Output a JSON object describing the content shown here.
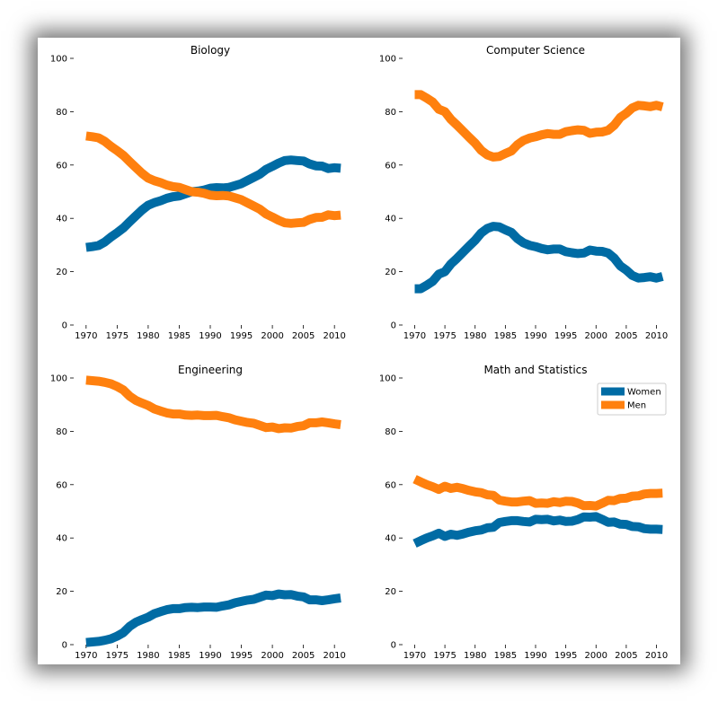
{
  "chart_data": [
    {
      "type": "line",
      "title": "Biology",
      "xlim": [
        1968,
        2012
      ],
      "ylim": [
        0,
        100
      ],
      "xticks": [
        1970,
        1975,
        1980,
        1985,
        1990,
        1995,
        2000,
        2005,
        2010
      ],
      "yticks": [
        0,
        20,
        40,
        60,
        80,
        100
      ],
      "x": [
        1970,
        1971,
        1972,
        1973,
        1974,
        1975,
        1976,
        1977,
        1978,
        1979,
        1980,
        1981,
        1982,
        1983,
        1984,
        1985,
        1986,
        1987,
        1988,
        1989,
        1990,
        1991,
        1992,
        1993,
        1994,
        1995,
        1996,
        1997,
        1998,
        1999,
        2000,
        2001,
        2002,
        2003,
        2004,
        2005,
        2006,
        2007,
        2008,
        2009,
        2010,
        2011
      ],
      "series": [
        {
          "name": "Women",
          "color": "#006BA4",
          "values": [
            29.1,
            29.4,
            29.8,
            31.1,
            33.0,
            34.6,
            36.4,
            38.7,
            40.9,
            43.1,
            44.9,
            45.9,
            46.6,
            47.5,
            48.1,
            48.4,
            49.2,
            50.0,
            50.2,
            50.6,
            51.3,
            51.5,
            51.4,
            51.6,
            52.3,
            53.0,
            54.2,
            55.4,
            56.6,
            58.4,
            59.5,
            60.7,
            61.7,
            61.9,
            61.7,
            61.5,
            60.4,
            59.7,
            59.6,
            58.7,
            59.0,
            58.8
          ]
        },
        {
          "name": "Men",
          "color": "#FF800E",
          "values": [
            70.9,
            70.6,
            70.2,
            68.9,
            67.0,
            65.4,
            63.6,
            61.3,
            59.1,
            56.9,
            55.1,
            54.1,
            53.4,
            52.5,
            51.9,
            51.6,
            50.8,
            50.0,
            49.8,
            49.4,
            48.7,
            48.5,
            48.6,
            48.4,
            47.7,
            47.0,
            45.8,
            44.6,
            43.4,
            41.6,
            40.5,
            39.3,
            38.3,
            38.1,
            38.3,
            38.5,
            39.6,
            40.3,
            40.4,
            41.3,
            41.0,
            41.2
          ]
        }
      ]
    },
    {
      "type": "line",
      "title": "Computer Science",
      "xlim": [
        1968,
        2012
      ],
      "ylim": [
        0,
        100
      ],
      "xticks": [
        1970,
        1975,
        1980,
        1985,
        1990,
        1995,
        2000,
        2005,
        2010
      ],
      "yticks": [
        0,
        20,
        40,
        60,
        80,
        100
      ],
      "x": [
        1970,
        1971,
        1972,
        1973,
        1974,
        1975,
        1976,
        1977,
        1978,
        1979,
        1980,
        1981,
        1982,
        1983,
        1984,
        1985,
        1986,
        1987,
        1988,
        1989,
        1990,
        1991,
        1992,
        1993,
        1994,
        1995,
        1996,
        1997,
        1998,
        1999,
        2000,
        2001,
        2002,
        2003,
        2004,
        2005,
        2006,
        2007,
        2008,
        2009,
        2010,
        2011
      ],
      "series": [
        {
          "name": "Women",
          "color": "#006BA4",
          "values": [
            13.6,
            13.6,
            14.9,
            16.4,
            19.1,
            20.0,
            22.9,
            25.0,
            27.3,
            29.6,
            31.8,
            34.5,
            36.2,
            37.0,
            36.8,
            35.7,
            34.7,
            32.4,
            30.8,
            29.9,
            29.4,
            28.7,
            28.2,
            28.5,
            28.5,
            27.5,
            27.1,
            26.8,
            27.0,
            28.1,
            27.7,
            27.6,
            27.0,
            25.1,
            22.2,
            20.6,
            18.6,
            17.6,
            17.8,
            18.1,
            17.6,
            18.2
          ]
        },
        {
          "name": "Men",
          "color": "#FF800E",
          "values": [
            86.4,
            86.4,
            85.1,
            83.6,
            80.9,
            80.0,
            77.1,
            75.0,
            72.7,
            70.4,
            68.2,
            65.5,
            63.8,
            63.0,
            63.2,
            64.3,
            65.3,
            67.6,
            69.2,
            70.1,
            70.6,
            71.3,
            71.8,
            71.5,
            71.5,
            72.5,
            72.9,
            73.2,
            73.0,
            71.9,
            72.3,
            72.4,
            73.0,
            74.9,
            77.8,
            79.4,
            81.4,
            82.4,
            82.2,
            81.9,
            82.4,
            81.8
          ]
        }
      ]
    },
    {
      "type": "line",
      "title": "Engineering",
      "xlim": [
        1968,
        2012
      ],
      "ylim": [
        0,
        100
      ],
      "xticks": [
        1970,
        1975,
        1980,
        1985,
        1990,
        1995,
        2000,
        2005,
        2010
      ],
      "yticks": [
        0,
        20,
        40,
        60,
        80,
        100
      ],
      "x": [
        1970,
        1971,
        1972,
        1973,
        1974,
        1975,
        1976,
        1977,
        1978,
        1979,
        1980,
        1981,
        1982,
        1983,
        1984,
        1985,
        1986,
        1987,
        1988,
        1989,
        1990,
        1991,
        1992,
        1993,
        1994,
        1995,
        1996,
        1997,
        1998,
        1999,
        2000,
        2001,
        2002,
        2003,
        2004,
        2005,
        2006,
        2007,
        2008,
        2009,
        2010,
        2011
      ],
      "series": [
        {
          "name": "Women",
          "color": "#006BA4",
          "values": [
            0.8,
            1.0,
            1.2,
            1.6,
            2.2,
            3.2,
            4.5,
            6.8,
            8.4,
            9.4,
            10.3,
            11.6,
            12.4,
            13.1,
            13.5,
            13.5,
            13.9,
            14.0,
            13.9,
            14.1,
            14.1,
            14.0,
            14.5,
            14.9,
            15.7,
            16.2,
            16.7,
            17.0,
            17.8,
            18.6,
            18.4,
            19.0,
            18.7,
            18.8,
            18.2,
            17.9,
            16.8,
            16.8,
            16.5,
            16.8,
            17.2,
            17.5
          ]
        },
        {
          "name": "Men",
          "color": "#FF800E",
          "values": [
            99.2,
            99.0,
            98.8,
            98.4,
            97.8,
            96.8,
            95.5,
            93.2,
            91.6,
            90.6,
            89.7,
            88.4,
            87.6,
            86.9,
            86.5,
            86.5,
            86.1,
            86.0,
            86.1,
            85.9,
            85.9,
            86.0,
            85.5,
            85.1,
            84.3,
            83.8,
            83.3,
            83.0,
            82.2,
            81.4,
            81.6,
            81.0,
            81.3,
            81.2,
            81.8,
            82.1,
            83.2,
            83.2,
            83.5,
            83.2,
            82.8,
            82.5
          ]
        }
      ]
    },
    {
      "type": "line",
      "title": "Math and Statistics",
      "xlim": [
        1968,
        2012
      ],
      "ylim": [
        0,
        100
      ],
      "xticks": [
        1970,
        1975,
        1980,
        1985,
        1990,
        1995,
        2000,
        2005,
        2010
      ],
      "yticks": [
        0,
        20,
        40,
        60,
        80,
        100
      ],
      "legend": {
        "placement": "upper-right",
        "entries": [
          "Women",
          "Men"
        ]
      },
      "x": [
        1970,
        1971,
        1972,
        1973,
        1974,
        1975,
        1976,
        1977,
        1978,
        1979,
        1980,
        1981,
        1982,
        1983,
        1984,
        1985,
        1986,
        1987,
        1988,
        1989,
        1990,
        1991,
        1992,
        1993,
        1994,
        1995,
        1996,
        1997,
        1998,
        1999,
        2000,
        2001,
        2002,
        2003,
        2004,
        2005,
        2006,
        2007,
        2008,
        2009,
        2010,
        2011
      ],
      "series": [
        {
          "name": "Women",
          "color": "#006BA4",
          "values": [
            37.9,
            39.0,
            40.0,
            40.8,
            41.8,
            40.6,
            41.4,
            41.0,
            41.5,
            42.2,
            42.7,
            43.0,
            43.8,
            44.0,
            45.8,
            46.2,
            46.5,
            46.5,
            46.2,
            46.0,
            47.0,
            46.9,
            47.0,
            46.4,
            46.7,
            46.2,
            46.3,
            46.9,
            47.9,
            47.8,
            48.0,
            47.0,
            45.9,
            46.0,
            45.2,
            45.1,
            44.3,
            44.2,
            43.5,
            43.3,
            43.3,
            43.2
          ]
        },
        {
          "name": "Men",
          "color": "#FF800E",
          "values": [
            62.1,
            61.0,
            60.0,
            59.2,
            58.2,
            59.4,
            58.6,
            59.0,
            58.5,
            57.8,
            57.3,
            57.0,
            56.2,
            56.0,
            54.2,
            53.8,
            53.5,
            53.5,
            53.8,
            54.0,
            53.0,
            53.1,
            53.0,
            53.6,
            53.3,
            53.8,
            53.7,
            53.1,
            52.1,
            52.2,
            52.0,
            53.0,
            54.1,
            54.0,
            54.8,
            54.9,
            55.7,
            55.8,
            56.5,
            56.7,
            56.7,
            56.8
          ]
        }
      ]
    }
  ]
}
